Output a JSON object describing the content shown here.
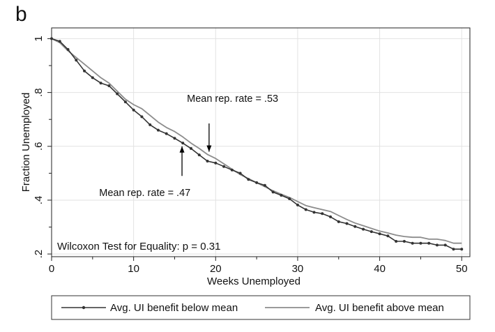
{
  "panel_label": "b",
  "chart_data": {
    "type": "line",
    "xlabel": "Weeks Unemployed",
    "ylabel": "Fraction Unemployed",
    "xlim": [
      0,
      51
    ],
    "ylim": [
      0.19,
      1.04
    ],
    "xticks": [
      0,
      10,
      20,
      30,
      40,
      50
    ],
    "xtick_labels": [
      "0",
      "10",
      "20",
      "30",
      "40",
      "50"
    ],
    "yticks": [
      0.2,
      0.4,
      0.6,
      0.8,
      1.0
    ],
    "ytick_labels": [
      ".2",
      ".4",
      ".6",
      ".8",
      "1"
    ],
    "grid": true,
    "legend_position": "bottom",
    "series": [
      {
        "name": "Avg. UI benefit below mean",
        "color": "#333333",
        "marker": "dot",
        "x": [
          0,
          1,
          2,
          3,
          4,
          5,
          6,
          7,
          8,
          9,
          10,
          11,
          12,
          13,
          14,
          15,
          16,
          17,
          18,
          19,
          20,
          21,
          22,
          23,
          24,
          25,
          26,
          27,
          28,
          29,
          30,
          31,
          32,
          33,
          34,
          35,
          36,
          37,
          38,
          39,
          40,
          41,
          42,
          43,
          44,
          45,
          46,
          47,
          48,
          49,
          50
        ],
        "values": [
          1.0,
          0.99,
          0.96,
          0.92,
          0.88,
          0.855,
          0.835,
          0.825,
          0.795,
          0.765,
          0.735,
          0.71,
          0.68,
          0.66,
          0.647,
          0.63,
          0.612,
          0.592,
          0.568,
          0.545,
          0.538,
          0.525,
          0.512,
          0.5,
          0.477,
          0.465,
          0.455,
          0.43,
          0.418,
          0.405,
          0.382,
          0.365,
          0.355,
          0.35,
          0.338,
          0.32,
          0.313,
          0.302,
          0.292,
          0.283,
          0.275,
          0.267,
          0.247,
          0.247,
          0.24,
          0.24,
          0.24,
          0.233,
          0.233,
          0.218,
          0.218
        ]
      },
      {
        "name": "Avg. UI benefit above mean",
        "color": "#8c8c8c",
        "marker": "none",
        "x": [
          0,
          1,
          2,
          3,
          4,
          5,
          6,
          7,
          8,
          9,
          10,
          11,
          12,
          13,
          14,
          15,
          16,
          17,
          18,
          19,
          20,
          21,
          22,
          23,
          24,
          25,
          26,
          27,
          28,
          29,
          30,
          31,
          32,
          33,
          34,
          35,
          36,
          37,
          38,
          39,
          40,
          41,
          42,
          43,
          44,
          45,
          46,
          47,
          48,
          49,
          50
        ],
        "values": [
          1.0,
          0.985,
          0.955,
          0.93,
          0.905,
          0.88,
          0.855,
          0.835,
          0.805,
          0.775,
          0.755,
          0.74,
          0.715,
          0.69,
          0.67,
          0.655,
          0.635,
          0.612,
          0.592,
          0.57,
          0.555,
          0.535,
          0.515,
          0.495,
          0.48,
          0.465,
          0.45,
          0.435,
          0.422,
          0.41,
          0.395,
          0.38,
          0.372,
          0.365,
          0.358,
          0.343,
          0.328,
          0.315,
          0.305,
          0.295,
          0.285,
          0.278,
          0.27,
          0.265,
          0.262,
          0.262,
          0.255,
          0.255,
          0.25,
          0.24,
          0.24
        ]
      }
    ],
    "annotations": [
      {
        "text": "Mean rep. rate = .53",
        "x_text": 16.5,
        "y_text": 0.765,
        "arrow_from": [
          19.2,
          0.685
        ],
        "arrow_to": [
          19.2,
          0.58
        ]
      },
      {
        "text": "Mean rep. rate = .47",
        "x_text": 5.8,
        "y_text": 0.415,
        "arrow_from": [
          15.9,
          0.49
        ],
        "arrow_to": [
          15.9,
          0.6
        ]
      }
    ],
    "note": "Wilcoxon Test for Equality: p = 0.31"
  }
}
